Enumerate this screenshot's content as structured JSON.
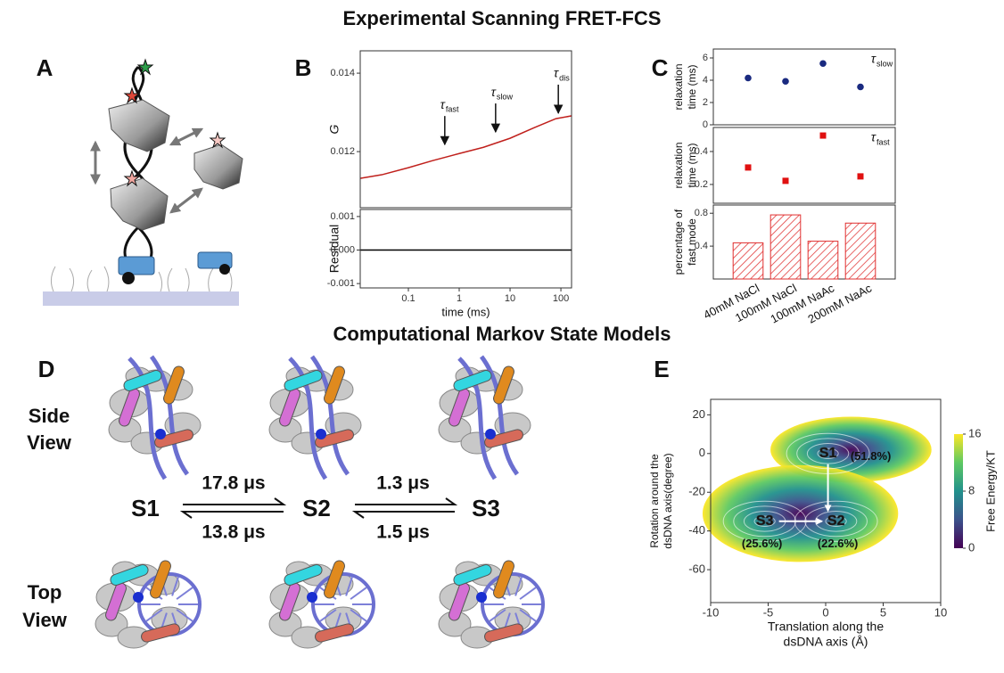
{
  "title": "Experimental Scanning FRET-FCS",
  "section_title": "Computational Markov State Models",
  "panel_labels": [
    "A",
    "B",
    "C",
    "D",
    "E"
  ],
  "chart_data": [
    {
      "type": "line",
      "ylabel": "G",
      "xscale": "log",
      "xlim": [
        0.0113,
        162
      ],
      "ylim": [
        0.01057,
        0.01457
      ],
      "yticks": [
        0.012,
        0.014
      ],
      "x": [
        0.0115,
        0.03,
        0.1,
        0.3,
        1,
        3,
        10,
        30,
        80,
        160
      ],
      "values": [
        0.01132,
        0.01141,
        0.01159,
        0.01177,
        0.01195,
        0.01211,
        0.01234,
        0.01261,
        0.01284,
        0.01291
      ],
      "color": "#c0201c",
      "annotations": [
        {
          "label": "τ",
          "sub": "fast",
          "color": "#d62728",
          "x": 0.52,
          "y": 0.01218
        },
        {
          "label": "τ",
          "sub": "slow",
          "color": "#1f3a8a",
          "x": 5.2,
          "y": 0.0125
        },
        {
          "label": "τ",
          "sub": "dis",
          "color": "#222222",
          "x": 89,
          "y": 0.01298
        }
      ]
    },
    {
      "type": "line",
      "ylabel": "Residual",
      "xlabel": "time (ms)",
      "xscale": "log",
      "xlim": [
        0.0113,
        162
      ],
      "ylim": [
        -0.00113,
        0.00121
      ],
      "yticks": [
        0.001,
        {
          "value": 0,
          "label": "0.000"
        },
        -0.001
      ],
      "xticks": [
        0.1,
        1,
        10,
        100
      ],
      "x": [
        0.0115,
        160
      ],
      "values": [
        0,
        0
      ],
      "color": "#000000"
    },
    {
      "type": "scatter",
      "marker": "circle",
      "ylabel": [
        "relaxation",
        "time (ms)"
      ],
      "ylim": [
        0,
        6.8
      ],
      "yticks": [
        0,
        2,
        4,
        6
      ],
      "values": [
        4.2,
        3.9,
        5.5,
        3.4
      ],
      "color": "#1a2a80",
      "annotation": {
        "label": "τ",
        "sub": "slow",
        "color": "#1f3a8a"
      }
    },
    {
      "type": "scatter",
      "marker": "square",
      "ylabel": [
        "relaxation",
        "time (ms)"
      ],
      "ylim": [
        0.086,
        0.546
      ],
      "yticks": [
        0.2,
        0.4
      ],
      "values": [
        0.303,
        0.222,
        0.497,
        0.249
      ],
      "color": "#e01010",
      "annotation": {
        "label": "τ",
        "sub": "fast",
        "color": "#e01010"
      }
    },
    {
      "type": "bar",
      "ylabel": [
        "percentage of",
        "fast mode"
      ],
      "ylim": [
        0,
        0.9
      ],
      "yticks": [
        0.4,
        0.8
      ],
      "categories": [
        "40mM NaCl",
        "100mM NaCl",
        "100mM NaAc",
        "200mM NaAc"
      ],
      "values": [
        0.44,
        0.78,
        0.46,
        0.68
      ],
      "color": "#e03030",
      "hatch": true
    },
    {
      "type": "heatmap",
      "xlabel": [
        "Translation along the",
        "dsDNA axis (Å)"
      ],
      "ylabel": [
        "Rotation around the",
        "dsDNA axis(degree)"
      ],
      "xlim": [
        -10,
        10
      ],
      "xticks": [
        -10,
        -5,
        0,
        5,
        10
      ],
      "ylim": [
        -77,
        28
      ],
      "yticks": [
        20,
        0,
        -20,
        -40,
        -60
      ],
      "colorbar": {
        "label": "Free Energy/KT",
        "lim": [
          0,
          16
        ],
        "ticks": [
          0,
          8,
          16
        ],
        "colors": [
          "#440154",
          "#3b528b",
          "#21918c",
          "#5ec962",
          "#fde725"
        ]
      },
      "states": [
        {
          "label": "S1",
          "x": 0.2,
          "y": 0,
          "population": "(51.8%)"
        },
        {
          "label": "S2",
          "x": 0.9,
          "y": -35,
          "population": "(22.6%)"
        },
        {
          "label": "S3",
          "x": -5.3,
          "y": -35,
          "population": "(25.6%)"
        }
      ]
    }
  ],
  "panel_d": {
    "side_view": [
      "Side",
      "View"
    ],
    "top_view": [
      "Top",
      "View"
    ],
    "states": [
      "S1",
      "S2",
      "S3"
    ],
    "rates": [
      {
        "forward": "17.8 μs",
        "backward": "13.8 μs"
      },
      {
        "forward": "1.3 μs",
        "backward": "1.5 μs"
      }
    ]
  }
}
